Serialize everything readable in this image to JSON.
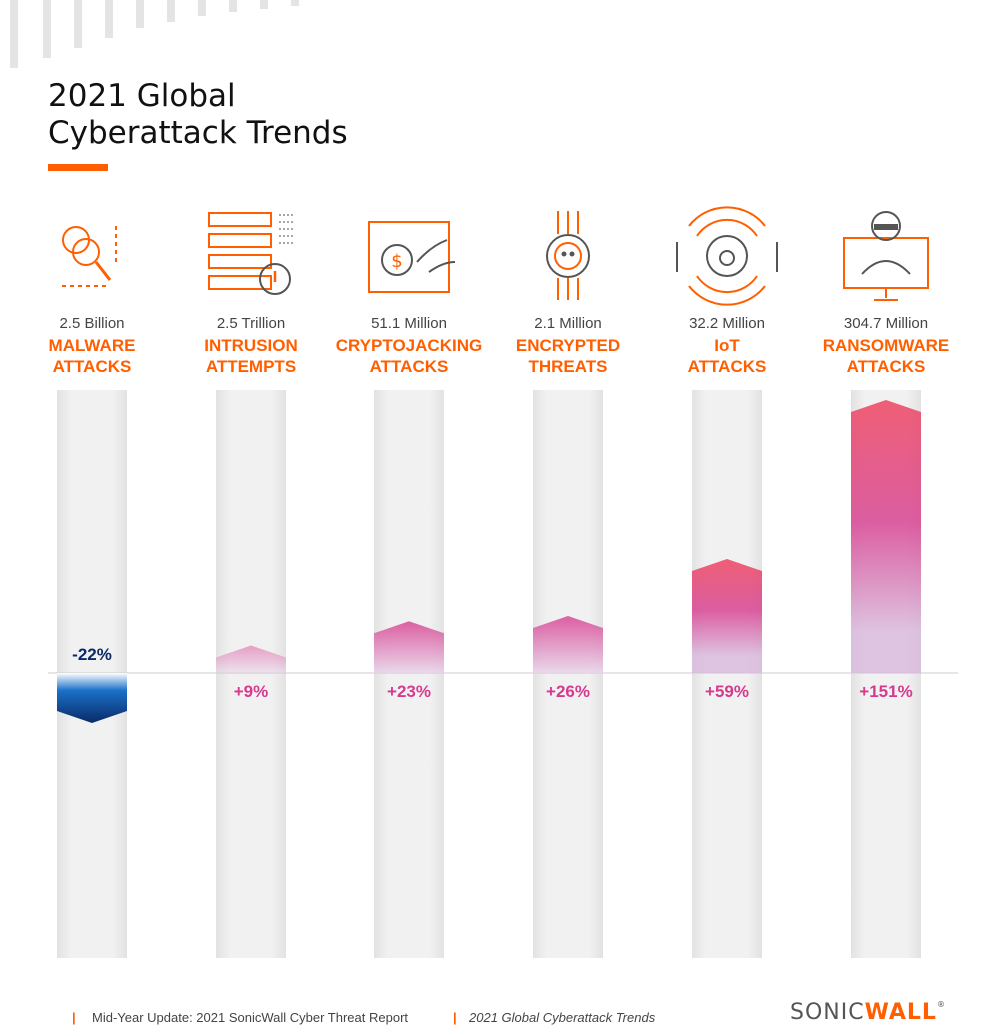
{
  "title": {
    "line1": "2021 Global",
    "line2": "Cyberattack Trends"
  },
  "chart_data": {
    "type": "bar",
    "categories": [
      {
        "count": "2.5 Billion",
        "name1": "MALWARE",
        "name2": "ATTACKS",
        "icon": "malware-icon"
      },
      {
        "count": "2.5 Trillion",
        "name1": "INTRUSION",
        "name2": "ATTEMPTS",
        "icon": "intrusion-icon"
      },
      {
        "count": "51.1 Million",
        "name1": "CRYPTOJACKING",
        "name2": "ATTACKS",
        "icon": "cryptojacking-icon"
      },
      {
        "count": "2.1 Million",
        "name1": "ENCRYPTED",
        "name2": "THREATS",
        "icon": "encrypted-threat-icon"
      },
      {
        "count": "32.2 Million",
        "name1": "IoT",
        "name2": "ATTACKS",
        "icon": "iot-icon"
      },
      {
        "count": "304.7 Million",
        "name1": "RANSOMWARE",
        "name2": "ATTACKS",
        "icon": "ransomware-icon"
      }
    ],
    "values": [
      -22,
      9,
      23,
      26,
      59,
      151
    ],
    "value_labels": [
      "-22%",
      "+9%",
      "+23%",
      "+26%",
      "+59%",
      "+151%"
    ]
  },
  "colors": {
    "accent": "#ff5f00",
    "negative": "#0a2a66",
    "positive": "#d63a8e",
    "hot": "#ef3a56",
    "track": "#f1f1f1"
  },
  "footer": {
    "report": "Mid-Year Update: 2021 SonicWall Cyber Threat Report",
    "section": "2021 Global Cyberattack Trends"
  },
  "brand": {
    "part1": "SONIC",
    "part2": "WALL",
    "mark": "®"
  }
}
